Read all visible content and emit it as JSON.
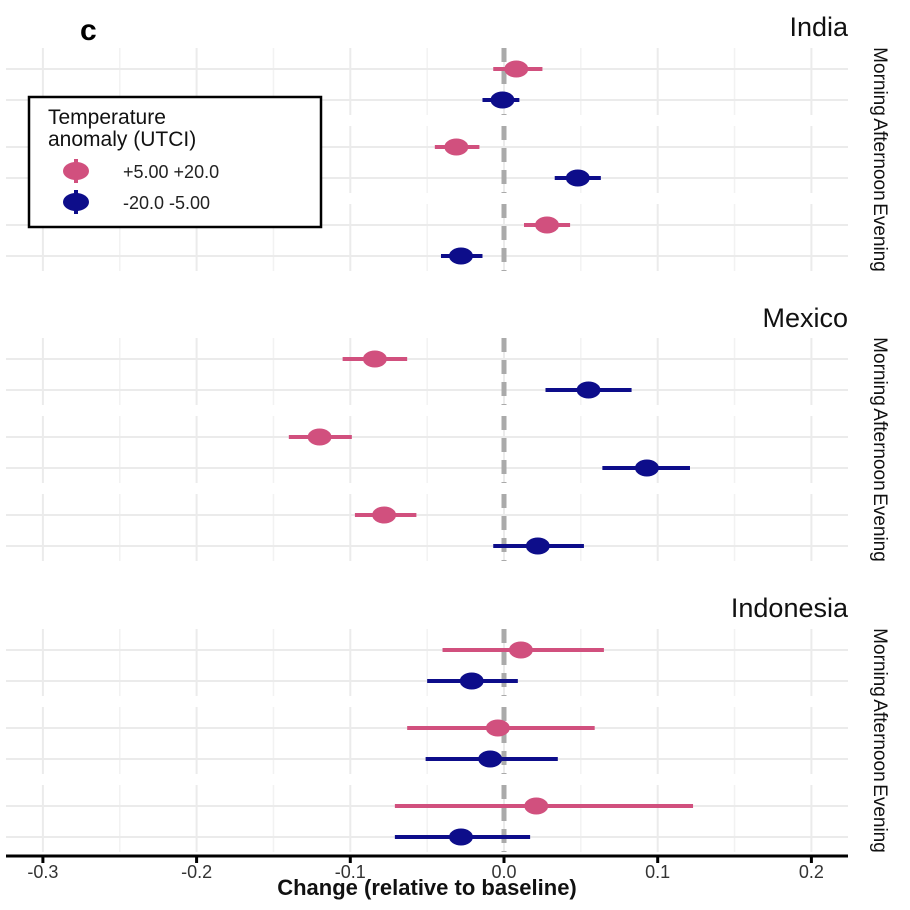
{
  "chart_data": {
    "type": "scatter",
    "subtype": "dot-and-whisker (point estimate with confidence interval)",
    "panel_label": "c",
    "xlabel": "Change (relative to baseline)",
    "xlim": [
      -0.32,
      0.225
    ],
    "x_ticks": [
      -0.3,
      -0.2,
      -0.1,
      0.0,
      0.1,
      0.2
    ],
    "x_tick_labels": [
      "-0.3",
      "-0.2",
      "-0.1",
      "0.0",
      "0.1",
      "0.2"
    ],
    "reference_line": {
      "x": 0.0,
      "style": "dashed",
      "color": "#aaaaaa"
    },
    "grid": true,
    "legend": {
      "title_lines": [
        "Temperature",
        "anomaly (UTCI)"
      ],
      "placement": "top-left",
      "entries": [
        {
          "label": "+5.00 +20.0",
          "color": "#d1507e"
        },
        {
          "label": "-20.0 -5.00",
          "color": "#0d0d8a"
        }
      ]
    },
    "series_colors": {
      "hot": "#d1507e",
      "cold": "#0d0d8a"
    },
    "facets": [
      {
        "country": "India",
        "periods": [
          {
            "label": "Morning",
            "hot": {
              "est": 0.008,
              "lo": -0.007,
              "hi": 0.025
            },
            "cold": {
              "est": -0.001,
              "lo": -0.014,
              "hi": 0.01
            }
          },
          {
            "label": "Afternoon",
            "hot": {
              "est": -0.031,
              "lo": -0.045,
              "hi": -0.016
            },
            "cold": {
              "est": 0.048,
              "lo": 0.033,
              "hi": 0.063
            }
          },
          {
            "label": "Evening",
            "hot": {
              "est": 0.028,
              "lo": 0.013,
              "hi": 0.043
            },
            "cold": {
              "est": -0.028,
              "lo": -0.041,
              "hi": -0.014
            }
          }
        ]
      },
      {
        "country": "Mexico",
        "periods": [
          {
            "label": "Morning",
            "hot": {
              "est": -0.084,
              "lo": -0.105,
              "hi": -0.063
            },
            "cold": {
              "est": 0.055,
              "lo": 0.027,
              "hi": 0.083
            }
          },
          {
            "label": "Afternoon",
            "hot": {
              "est": -0.12,
              "lo": -0.14,
              "hi": -0.099
            },
            "cold": {
              "est": 0.093,
              "lo": 0.064,
              "hi": 0.121
            }
          },
          {
            "label": "Evening",
            "hot": {
              "est": -0.078,
              "lo": -0.097,
              "hi": -0.057
            },
            "cold": {
              "est": 0.022,
              "lo": -0.007,
              "hi": 0.052
            }
          }
        ]
      },
      {
        "country": "Indonesia",
        "periods": [
          {
            "label": "Morning",
            "hot": {
              "est": 0.011,
              "lo": -0.04,
              "hi": 0.065
            },
            "cold": {
              "est": -0.021,
              "lo": -0.05,
              "hi": 0.009
            }
          },
          {
            "label": "Afternoon",
            "hot": {
              "est": -0.004,
              "lo": -0.063,
              "hi": 0.059
            },
            "cold": {
              "est": -0.009,
              "lo": -0.051,
              "hi": 0.035
            }
          },
          {
            "label": "Evening",
            "hot": {
              "est": 0.021,
              "lo": -0.071,
              "hi": 0.123
            },
            "cold": {
              "est": -0.028,
              "lo": -0.071,
              "hi": 0.017
            }
          }
        ]
      }
    ]
  }
}
